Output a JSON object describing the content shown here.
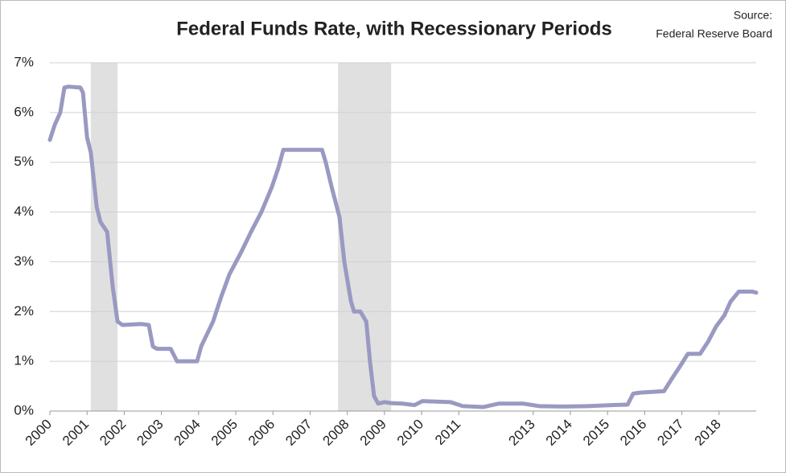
{
  "chart_data": {
    "type": "line",
    "title": "Federal Funds Rate, with Recessionary Periods",
    "source": [
      "Source:",
      "Federal Reserve Board"
    ],
    "x": [
      2000.0,
      2000.13,
      2000.28,
      2000.39,
      2000.5,
      2000.82,
      2000.89,
      2001.0,
      2001.1,
      2001.26,
      2001.36,
      2001.54,
      2001.69,
      2001.82,
      2001.95,
      2002.45,
      2002.66,
      2002.77,
      2002.88,
      2003.25,
      2003.42,
      2003.96,
      2004.07,
      2004.39,
      2004.61,
      2004.83,
      2005.15,
      2005.41,
      2005.69,
      2005.97,
      2006.15,
      2006.28,
      2007.32,
      2007.42,
      2007.58,
      2007.79,
      2007.92,
      2008.1,
      2008.18,
      2008.35,
      2008.51,
      2008.61,
      2008.72,
      2008.83,
      2009.0,
      2009.18,
      2009.48,
      2009.81,
      2010.02,
      2010.78,
      2011.1,
      2011.65,
      2012.08,
      2012.73,
      2013.16,
      2013.81,
      2014.46,
      2015.11,
      2015.54,
      2015.69,
      2015.87,
      2016.52,
      2016.73,
      2016.95,
      2017.16,
      2017.49,
      2017.71,
      2017.92,
      2018.14,
      2018.31,
      2018.53,
      2018.9,
      2019.0
    ],
    "series": [
      {
        "name": "Federal Funds Rate",
        "color": "#9999c2",
        "values": [
          5.45,
          5.75,
          6.0,
          6.5,
          6.52,
          6.5,
          6.4,
          5.5,
          5.2,
          4.1,
          3.8,
          3.6,
          2.5,
          1.8,
          1.73,
          1.75,
          1.73,
          1.3,
          1.25,
          1.25,
          1.0,
          1.0,
          1.3,
          1.8,
          2.3,
          2.75,
          3.2,
          3.6,
          4.0,
          4.5,
          4.9,
          5.25,
          5.25,
          5.0,
          4.5,
          3.9,
          3.0,
          2.2,
          2.0,
          2.0,
          1.8,
          1.0,
          0.3,
          0.15,
          0.18,
          0.16,
          0.15,
          0.12,
          0.2,
          0.18,
          0.1,
          0.08,
          0.15,
          0.15,
          0.1,
          0.09,
          0.1,
          0.12,
          0.13,
          0.35,
          0.37,
          0.4,
          0.65,
          0.9,
          1.15,
          1.15,
          1.4,
          1.7,
          1.92,
          2.2,
          2.4,
          2.4,
          2.38
        ]
      }
    ],
    "recessions": [
      [
        2001.1,
        2001.82
      ],
      [
        2007.75,
        2009.18
      ]
    ],
    "recession_color": "#e0e0e0",
    "xlim": [
      2000,
      2019
    ],
    "xticks": [
      2000,
      2001,
      2002,
      2003,
      2004,
      2005,
      2006,
      2007,
      2008,
      2009,
      2010,
      2011,
      2013,
      2014,
      2015,
      2016,
      2017,
      2018
    ],
    "ylim": [
      0,
      7
    ],
    "yticks": [
      {
        "value": 0,
        "label": "0%"
      },
      {
        "value": 1,
        "label": "1%"
      },
      {
        "value": 2,
        "label": "2%"
      },
      {
        "value": 3,
        "label": "3%"
      },
      {
        "value": 4,
        "label": "4%"
      },
      {
        "value": 5,
        "label": "5%"
      },
      {
        "value": 6,
        "label": "6%"
      },
      {
        "value": 7,
        "label": "7%"
      }
    ],
    "grid": true
  }
}
